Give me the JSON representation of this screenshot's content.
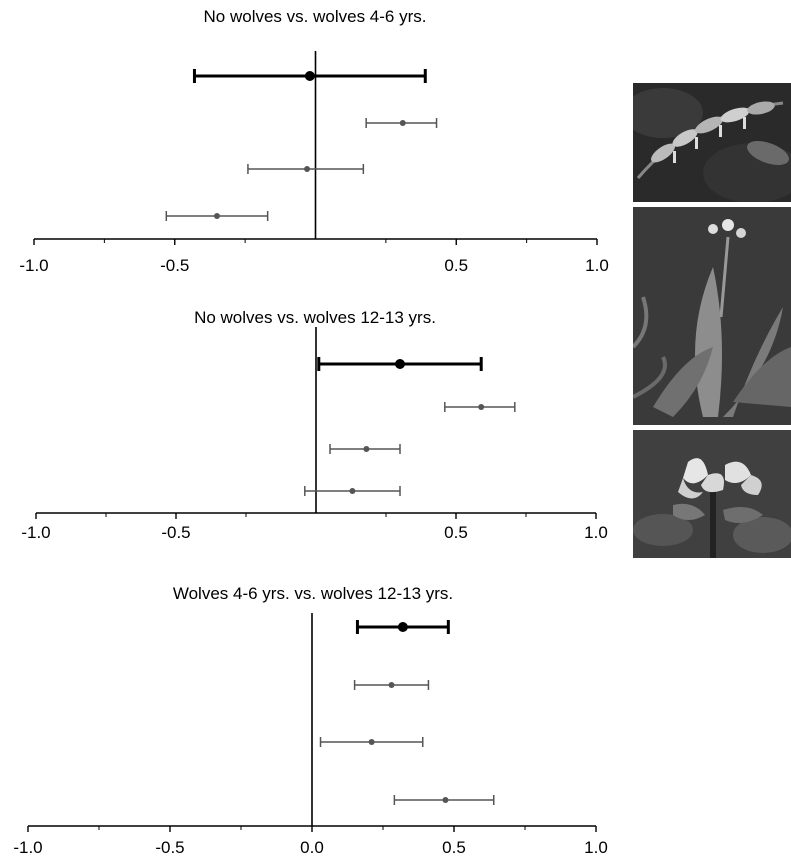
{
  "chart_data": [
    {
      "type": "forest",
      "title": "No wolves vs. wolves 4-6 yrs.",
      "xlim": [
        -1.0,
        1.0
      ],
      "xticks": [
        -1.0,
        -0.5,
        0.5,
        1.0
      ],
      "xtick_labels": [
        "-1.0",
        "-0.5",
        "0.5",
        "1.0"
      ],
      "minor_ticks": [
        -0.75,
        -0.25,
        0.25,
        0.75
      ],
      "estimates": [
        {
          "mean": -0.02,
          "low": -0.43,
          "high": 0.39,
          "overall": true
        },
        {
          "mean": 0.31,
          "low": 0.18,
          "high": 0.43,
          "overall": false
        },
        {
          "mean": -0.03,
          "low": -0.24,
          "high": 0.17,
          "overall": false
        },
        {
          "mean": -0.35,
          "low": -0.53,
          "high": -0.17,
          "overall": false
        }
      ]
    },
    {
      "type": "forest",
      "title": "No wolves vs. wolves 12-13 yrs.",
      "xlim": [
        -1.0,
        1.0
      ],
      "xticks": [
        -1.0,
        -0.5,
        0.5,
        1.0
      ],
      "xtick_labels": [
        "-1.0",
        "-0.5",
        "0.5",
        "1.0"
      ],
      "minor_ticks": [
        -0.75,
        -0.25,
        0.25,
        0.75
      ],
      "estimates": [
        {
          "mean": 0.3,
          "low": 0.01,
          "high": 0.59,
          "overall": true
        },
        {
          "mean": 0.59,
          "low": 0.46,
          "high": 0.71,
          "overall": false
        },
        {
          "mean": 0.18,
          "low": 0.05,
          "high": 0.3,
          "overall": false
        },
        {
          "mean": 0.13,
          "low": -0.04,
          "high": 0.3,
          "overall": false
        }
      ]
    },
    {
      "type": "forest",
      "title": "Wolves 4-6 yrs. vs. wolves 12-13 yrs.",
      "xlim": [
        -1.0,
        1.0
      ],
      "xticks": [
        -1.0,
        -0.5,
        0.0,
        0.5,
        1.0
      ],
      "xtick_labels": [
        "-1.0",
        "-0.5",
        "0.0",
        "0.5",
        "1.0"
      ],
      "minor_ticks": [
        -0.75,
        -0.25,
        0.25,
        0.75
      ],
      "estimates": [
        {
          "mean": 0.32,
          "low": 0.16,
          "high": 0.48,
          "overall": true
        },
        {
          "mean": 0.28,
          "low": 0.15,
          "high": 0.41,
          "overall": false
        },
        {
          "mean": 0.21,
          "low": 0.03,
          "high": 0.39,
          "overall": false
        },
        {
          "mean": 0.47,
          "low": 0.29,
          "high": 0.64,
          "overall": false
        }
      ]
    }
  ],
  "photos": [
    {
      "name": "photo-solomons-seal",
      "subject": "arching stem with dangling bell flowers"
    },
    {
      "name": "photo-clintonia",
      "subject": "broad basal leaves with flower stalk"
    },
    {
      "name": "photo-trillium",
      "subject": "white three-petaled flowers"
    }
  ]
}
